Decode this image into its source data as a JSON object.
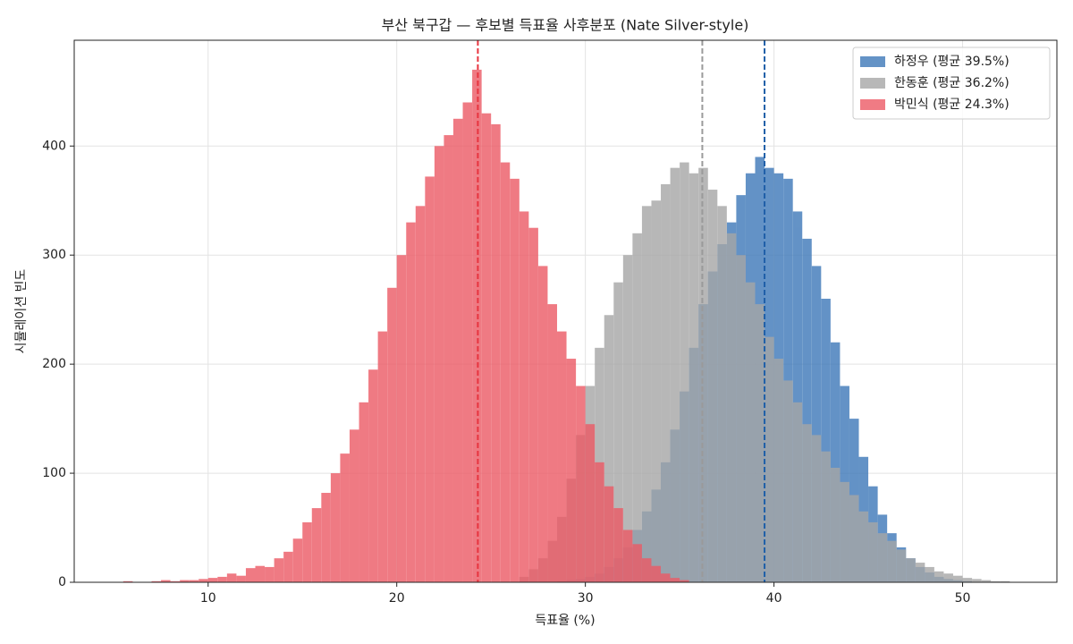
{
  "chart_data": {
    "type": "histogram",
    "title": "부산 북구갑 — 후보별 득표율 사후분포 (Nate Silver-style)",
    "x_label": "득표율 (%)",
    "y_label": "시뮬레이션 빈도",
    "xlim": [
      2.9,
      55
    ],
    "ylim": [
      0,
      497
    ],
    "xticks": [
      10,
      20,
      30,
      40,
      50
    ],
    "yticks": [
      0,
      100,
      200,
      300,
      400
    ],
    "grid": true,
    "legend": "upper right",
    "series": [
      {
        "name": "하정우 (평균 39.5%)",
        "color": "#3d78b8",
        "mean": 39.5,
        "mean_color": "#1f5fa8",
        "bins": [
          28.5,
          29,
          29.5,
          30,
          30.5,
          31,
          31.5,
          32,
          32.5,
          33,
          33.5,
          34,
          34.5,
          35,
          35.5,
          36,
          36.5,
          37,
          37.5,
          38,
          38.5,
          39,
          39.5,
          40,
          40.5,
          41,
          41.5,
          42,
          42.5,
          43,
          43.5,
          44,
          44.5,
          45,
          45.5,
          46,
          46.5,
          47,
          47.5,
          48,
          48.5,
          49,
          49.5,
          50,
          50.5
        ],
        "values": [
          1,
          2,
          3,
          5,
          8,
          14,
          22,
          32,
          48,
          65,
          85,
          110,
          140,
          175,
          215,
          255,
          285,
          310,
          330,
          355,
          375,
          390,
          380,
          375,
          370,
          340,
          315,
          290,
          260,
          220,
          180,
          150,
          115,
          88,
          62,
          45,
          32,
          22,
          14,
          9,
          5,
          3,
          2,
          1
        ]
      },
      {
        "name": "한동훈 (평균 36.2%)",
        "color": "#a6a6a6",
        "mean": 36.2,
        "mean_color": "#9a9a9a",
        "bins": [
          26.5,
          27,
          27.5,
          28,
          28.5,
          29,
          29.5,
          30,
          30.5,
          31,
          31.5,
          32,
          32.5,
          33,
          33.5,
          34,
          34.5,
          35,
          35.5,
          36,
          36.5,
          37,
          37.5,
          38,
          38.5,
          39,
          39.5,
          40,
          40.5,
          41,
          41.5,
          42,
          42.5,
          43,
          43.5,
          44,
          44.5,
          45,
          45.5,
          46,
          46.5,
          47,
          47.5,
          48,
          48.5,
          49,
          49.5,
          50,
          50.5,
          51,
          51.5,
          52,
          52.5
        ],
        "values": [
          5,
          12,
          22,
          38,
          60,
          95,
          135,
          180,
          215,
          245,
          275,
          300,
          320,
          345,
          350,
          365,
          380,
          385,
          375,
          380,
          360,
          345,
          320,
          300,
          275,
          255,
          225,
          205,
          185,
          165,
          145,
          135,
          120,
          105,
          92,
          80,
          65,
          55,
          45,
          38,
          30,
          22,
          18,
          14,
          10,
          8,
          6,
          4,
          3,
          2,
          1,
          1
        ]
      },
      {
        "name": "박민식 (평균 24.3%)",
        "color": "#ec5a65",
        "mean": 24.3,
        "mean_color": "#e8343f",
        "bins": [
          5.5,
          6,
          6.5,
          7,
          7.5,
          8,
          8.5,
          9,
          9.5,
          10,
          10.5,
          11,
          11.5,
          12,
          12.5,
          13,
          13.5,
          14,
          14.5,
          15,
          15.5,
          16,
          16.5,
          17,
          17.5,
          18,
          18.5,
          19,
          19.5,
          20,
          20.5,
          21,
          21.5,
          22,
          22.5,
          23,
          23.5,
          24,
          24.5,
          25,
          25.5,
          26,
          26.5,
          27,
          27.5,
          28,
          28.5,
          29,
          29.5,
          30,
          30.5,
          31,
          31.5,
          32,
          32.5,
          33,
          33.5,
          34,
          34.5,
          35,
          35.5
        ],
        "values": [
          1,
          0,
          0,
          1,
          2,
          1,
          2,
          2,
          3,
          4,
          5,
          8,
          6,
          13,
          15,
          14,
          22,
          28,
          40,
          55,
          68,
          82,
          100,
          118,
          140,
          165,
          195,
          230,
          270,
          300,
          330,
          345,
          372,
          400,
          410,
          425,
          440,
          470,
          430,
          420,
          385,
          370,
          340,
          325,
          290,
          255,
          230,
          205,
          180,
          145,
          110,
          88,
          68,
          48,
          35,
          22,
          15,
          8,
          4,
          2
        ]
      }
    ]
  }
}
